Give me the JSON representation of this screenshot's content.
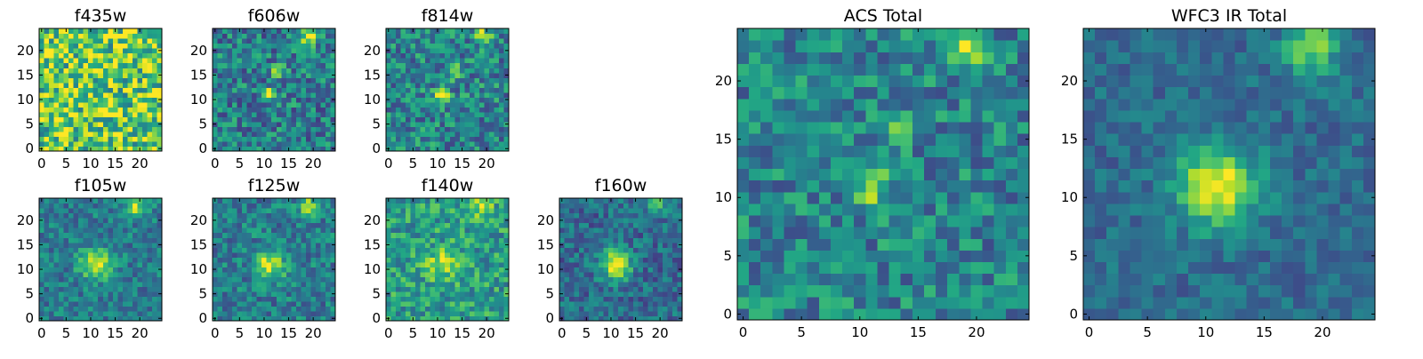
{
  "chart_data": [
    {
      "type": "heatmap",
      "title": "f435w",
      "colormap": "viridis",
      "xlim": [
        0,
        24
      ],
      "ylim": [
        0,
        24
      ],
      "xticks": [
        0,
        5,
        10,
        15,
        20
      ],
      "yticks": [
        0,
        5,
        10,
        15,
        20
      ],
      "grid_size": 25,
      "sources": [],
      "noise_level": 0.35,
      "background_level": 0.75
    },
    {
      "type": "heatmap",
      "title": "f606w",
      "colormap": "viridis",
      "xlim": [
        0,
        24
      ],
      "ylim": [
        0,
        24
      ],
      "xticks": [
        0,
        5,
        10,
        15,
        20
      ],
      "yticks": [
        0,
        5,
        10,
        15,
        20
      ],
      "grid_size": 25,
      "sources": [
        {
          "x": 11,
          "y": 11,
          "amp": 0.6,
          "sigma": 1.0
        },
        {
          "x": 13,
          "y": 16,
          "amp": 0.35,
          "sigma": 1.0
        },
        {
          "x": 19,
          "y": 23,
          "amp": 0.5,
          "sigma": 1.2
        }
      ],
      "noise_level": 0.25,
      "background_level": 0.42
    },
    {
      "type": "heatmap",
      "title": "f814w",
      "colormap": "viridis",
      "xlim": [
        0,
        24
      ],
      "ylim": [
        0,
        24
      ],
      "xticks": [
        0,
        5,
        10,
        15,
        20
      ],
      "yticks": [
        0,
        5,
        10,
        15,
        20
      ],
      "grid_size": 25,
      "sources": [
        {
          "x": 11,
          "y": 11,
          "amp": 0.6,
          "sigma": 1.0
        },
        {
          "x": 13,
          "y": 16,
          "amp": 0.3,
          "sigma": 1.0
        },
        {
          "x": 19,
          "y": 23,
          "amp": 0.5,
          "sigma": 1.2
        }
      ],
      "noise_level": 0.25,
      "background_level": 0.45
    },
    {
      "type": "heatmap",
      "title": "f105w",
      "colormap": "viridis",
      "xlim": [
        0,
        24
      ],
      "ylim": [
        0,
        24
      ],
      "xticks": [
        0,
        5,
        10,
        15,
        20
      ],
      "yticks": [
        0,
        5,
        10,
        15,
        20
      ],
      "grid_size": 25,
      "sources": [
        {
          "x": 11,
          "y": 11,
          "amp": 0.5,
          "sigma": 2.2
        },
        {
          "x": 19,
          "y": 23,
          "amp": 0.45,
          "sigma": 1.5
        }
      ],
      "noise_level": 0.18,
      "background_level": 0.42
    },
    {
      "type": "heatmap",
      "title": "f125w",
      "colormap": "viridis",
      "xlim": [
        0,
        24
      ],
      "ylim": [
        0,
        24
      ],
      "xticks": [
        0,
        5,
        10,
        15,
        20
      ],
      "yticks": [
        0,
        5,
        10,
        15,
        20
      ],
      "grid_size": 25,
      "sources": [
        {
          "x": 11,
          "y": 11,
          "amp": 0.5,
          "sigma": 2.2
        },
        {
          "x": 19,
          "y": 23,
          "amp": 0.45,
          "sigma": 1.5
        }
      ],
      "noise_level": 0.2,
      "background_level": 0.42
    },
    {
      "type": "heatmap",
      "title": "f140w",
      "colormap": "viridis",
      "xlim": [
        0,
        24
      ],
      "ylim": [
        0,
        24
      ],
      "xticks": [
        0,
        5,
        10,
        15,
        20
      ],
      "yticks": [
        0,
        5,
        10,
        15,
        20
      ],
      "grid_size": 25,
      "sources": [
        {
          "x": 11,
          "y": 11,
          "amp": 0.35,
          "sigma": 2.2
        },
        {
          "x": 19,
          "y": 23,
          "amp": 0.35,
          "sigma": 1.5
        }
      ],
      "noise_level": 0.22,
      "background_level": 0.55
    },
    {
      "type": "heatmap",
      "title": "f160w",
      "colormap": "viridis",
      "xlim": [
        0,
        24
      ],
      "ylim": [
        0,
        24
      ],
      "xticks": [
        0,
        5,
        10,
        15,
        20
      ],
      "yticks": [
        0,
        5,
        10,
        15,
        20
      ],
      "grid_size": 25,
      "sources": [
        {
          "x": 11,
          "y": 11,
          "amp": 0.6,
          "sigma": 2.2
        },
        {
          "x": 19,
          "y": 23,
          "amp": 0.35,
          "sigma": 1.5
        }
      ],
      "noise_level": 0.18,
      "background_level": 0.35
    },
    {
      "type": "heatmap",
      "title": "ACS Total",
      "colormap": "viridis",
      "xlim": [
        0,
        24
      ],
      "ylim": [
        0,
        24
      ],
      "xticks": [
        0,
        5,
        10,
        15,
        20
      ],
      "yticks": [
        0,
        5,
        10,
        15,
        20
      ],
      "grid_size": 25,
      "sources": [
        {
          "x": 11,
          "y": 11,
          "amp": 0.6,
          "sigma": 0.9
        },
        {
          "x": 13,
          "y": 16,
          "amp": 0.45,
          "sigma": 0.9
        },
        {
          "x": 19,
          "y": 23,
          "amp": 0.55,
          "sigma": 1.0
        }
      ],
      "noise_level": 0.22,
      "background_level": 0.45
    },
    {
      "type": "heatmap",
      "title": "WFC3 IR Total",
      "colormap": "viridis",
      "xlim": [
        0,
        24
      ],
      "ylim": [
        0,
        24
      ],
      "xticks": [
        0,
        5,
        10,
        15,
        20
      ],
      "yticks": [
        0,
        5,
        10,
        15,
        20
      ],
      "grid_size": 25,
      "sources": [
        {
          "x": 11,
          "y": 11,
          "amp": 0.65,
          "sigma": 2.4
        },
        {
          "x": 19,
          "y": 23,
          "amp": 0.45,
          "sigma": 1.6
        }
      ],
      "noise_level": 0.12,
      "background_level": 0.35
    }
  ]
}
